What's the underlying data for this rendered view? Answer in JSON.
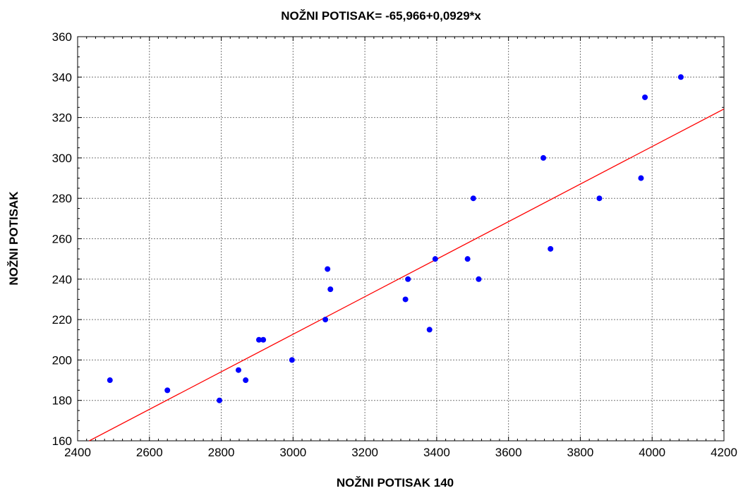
{
  "chart_data": {
    "type": "scatter",
    "title": "NOŽNI POTISAK= -65,966+0,0929*x",
    "xlabel": "NOŽNI POTISAK 140",
    "ylabel": "NOŽNI POTISAK",
    "xlim": [
      2400,
      4200
    ],
    "ylim": [
      160,
      360
    ],
    "x_ticks": [
      2400,
      2600,
      2800,
      3000,
      3200,
      3400,
      3600,
      3800,
      4000,
      4200
    ],
    "y_ticks": [
      160,
      180,
      200,
      220,
      240,
      260,
      280,
      300,
      320,
      340,
      360
    ],
    "grid": true,
    "point_color": "#0000ff",
    "line_color": "#ff0000",
    "regression": {
      "intercept": -65.966,
      "slope": 0.0929
    },
    "series": [
      {
        "points": [
          {
            "x": 2490,
            "y": 190
          },
          {
            "x": 2650,
            "y": 185
          },
          {
            "x": 2795,
            "y": 180
          },
          {
            "x": 2848,
            "y": 195
          },
          {
            "x": 2868,
            "y": 190
          },
          {
            "x": 2905,
            "y": 210
          },
          {
            "x": 2917,
            "y": 210
          },
          {
            "x": 2997,
            "y": 200
          },
          {
            "x": 3090,
            "y": 220
          },
          {
            "x": 3096,
            "y": 245
          },
          {
            "x": 3104,
            "y": 235
          },
          {
            "x": 3313,
            "y": 230
          },
          {
            "x": 3320,
            "y": 240
          },
          {
            "x": 3380,
            "y": 215
          },
          {
            "x": 3396,
            "y": 250
          },
          {
            "x": 3486,
            "y": 250
          },
          {
            "x": 3502,
            "y": 280
          },
          {
            "x": 3517,
            "y": 240
          },
          {
            "x": 3697,
            "y": 300
          },
          {
            "x": 3717,
            "y": 255
          },
          {
            "x": 3853,
            "y": 280
          },
          {
            "x": 3969,
            "y": 290
          },
          {
            "x": 3980,
            "y": 330
          },
          {
            "x": 4080,
            "y": 340
          }
        ]
      }
    ]
  }
}
